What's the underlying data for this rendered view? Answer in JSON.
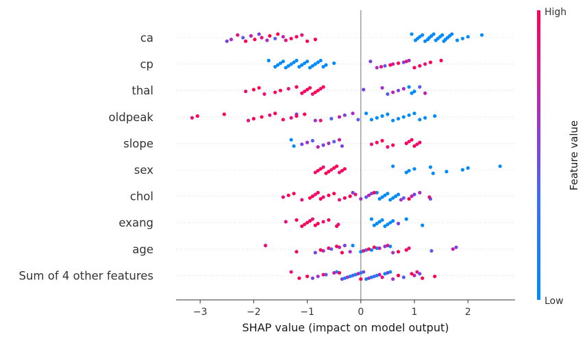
{
  "chart_data": {
    "type": "scatter",
    "title": "",
    "xlabel": "SHAP value (impact on model output)",
    "ylabel": "",
    "xlim": [
      -3.45,
      2.88
    ],
    "x_ticks": [
      -3,
      -2,
      -1,
      0,
      1,
      2
    ],
    "x_tick_labels": [
      "−3",
      "−2",
      "−1",
      "0",
      "1",
      "2"
    ],
    "grid": false,
    "reference_line_x": 0,
    "colorbar": {
      "label": "Feature value",
      "high_label": "High",
      "low_label": "Low",
      "low_color": "#008bfb",
      "high_color": "#ff0052"
    },
    "features": [
      {
        "name": "ca",
        "low_points": [
          0.95,
          1.02,
          1.06,
          1.1,
          1.15,
          1.2,
          1.25,
          1.28,
          1.32,
          1.36,
          1.4,
          1.44,
          1.48,
          1.52,
          1.55,
          1.58,
          1.62,
          1.66,
          1.7,
          1.8,
          1.9,
          2.0,
          2.26
        ],
        "mid_points": [
          -2.5,
          -2.42,
          -2.2,
          -2.05,
          -1.9,
          -1.75,
          -1.6,
          -1.45
        ],
        "high_points": [
          -2.3,
          -2.15,
          -1.98,
          -1.85,
          -1.7,
          -1.55,
          -1.4,
          -1.3,
          -1.2,
          -1.1,
          -1.0,
          -0.85
        ]
      },
      {
        "name": "cp",
        "low_points": [
          -1.72,
          -1.6,
          -1.55,
          -1.5,
          -1.45,
          -1.4,
          -1.35,
          -1.3,
          -1.25,
          -1.2,
          -1.15,
          -1.1,
          -1.05,
          -1.0,
          -0.95,
          -0.9,
          -0.85,
          -0.8,
          -0.75,
          -0.7,
          -0.65,
          -0.5
        ],
        "mid_points": [
          0.18,
          0.3,
          0.45,
          0.6,
          0.8,
          0.9
        ],
        "high_points": [
          0.38,
          0.55,
          0.7,
          0.85,
          1.0,
          1.1,
          1.2,
          1.3,
          1.5
        ]
      },
      {
        "name": "thal",
        "low_points": [
          0.9,
          0.95,
          1.0
        ],
        "mid_points": [
          0.05,
          0.4,
          0.5,
          0.6,
          0.7,
          0.8,
          1.1,
          1.2
        ],
        "high_points": [
          -2.15,
          -2.0,
          -1.9,
          -1.8,
          -1.6,
          -1.5,
          -1.35,
          -1.2,
          -1.1,
          -1.05,
          -1.0,
          -0.95,
          -0.9,
          -0.85,
          -0.8,
          -0.75,
          -0.7
        ]
      },
      {
        "name": "oldpeak",
        "low_points": [
          0.1,
          0.2,
          0.3,
          0.4,
          0.5,
          0.6,
          0.7,
          0.8,
          0.9,
          1.0,
          1.1,
          1.2,
          1.38
        ],
        "mid_points": [
          -1.2,
          -0.85,
          -0.55,
          -0.4,
          -0.3,
          -0.15,
          -0.05
        ],
        "high_points": [
          -3.15,
          -3.05,
          -2.55,
          -2.1,
          -2.0,
          -1.85,
          -1.7,
          -1.6,
          -1.45,
          -1.3,
          -1.2,
          -1.05,
          -0.75
        ]
      },
      {
        "name": "slope",
        "low_points": [
          -1.3,
          -1.25
        ],
        "mid_points": [
          -1.1,
          -1.0,
          -0.9,
          -0.8,
          -0.7,
          -0.6,
          -0.5,
          -0.4,
          -0.35
        ],
        "high_points": [
          0.2,
          0.3,
          0.4,
          0.5,
          0.6,
          0.85,
          0.9,
          0.95,
          1.0,
          1.05,
          1.1
        ]
      },
      {
        "name": "sex",
        "low_points": [
          0.6,
          0.85,
          0.9,
          1.0,
          1.3,
          1.35,
          1.6,
          1.9,
          2.0,
          2.6
        ],
        "mid_points": [],
        "high_points": [
          -0.85,
          -0.8,
          -0.75,
          -0.7,
          -0.65,
          -0.6,
          -0.55,
          -0.5,
          -0.45,
          -0.4,
          -0.35,
          -0.3
        ]
      },
      {
        "name": "chol",
        "low_points": [
          0.3,
          0.35,
          0.4,
          0.45,
          0.5,
          0.55,
          0.6,
          0.65,
          0.7
        ],
        "mid_points": [
          -0.15,
          0.0,
          0.1,
          0.15,
          0.2,
          0.75,
          0.8,
          0.95,
          1.0,
          1.1,
          1.3
        ],
        "high_points": [
          -1.45,
          -1.35,
          -1.25,
          -1.1,
          -0.95,
          -0.9,
          -0.85,
          -0.8,
          -0.75,
          -0.7,
          -0.6,
          -0.5,
          -0.4,
          -0.3,
          -0.2,
          -0.1,
          0.25,
          0.9,
          1.28
        ]
      },
      {
        "name": "exang",
        "low_points": [
          0.2,
          0.25,
          0.3,
          0.35,
          0.4,
          0.45,
          0.5,
          0.55,
          0.6,
          0.85,
          1.15
        ],
        "mid_points": [
          0.7
        ],
        "high_points": [
          -1.4,
          -1.2,
          -1.1,
          -1.05,
          -1.0,
          -0.95,
          -0.9,
          -0.85,
          -0.8,
          -0.7,
          -0.6,
          -0.45,
          -0.42
        ]
      },
      {
        "name": "age",
        "low_points": [
          -0.15,
          0.0,
          0.2,
          0.3,
          0.55
        ],
        "mid_points": [
          -0.85,
          -0.7,
          -0.55,
          -0.4,
          -0.3,
          -0.2,
          0.1,
          0.35,
          0.45,
          0.6,
          1.32,
          1.72,
          1.78
        ],
        "high_points": [
          -1.78,
          -1.2,
          -0.75,
          -0.6,
          -0.45,
          -0.35,
          0.05,
          0.15,
          0.25,
          0.5,
          0.7,
          0.85,
          0.9
        ]
      },
      {
        "name": "Sum of 4 other features",
        "low_points": [
          -0.45,
          -0.3,
          -0.2,
          -0.1,
          0.0,
          0.1,
          0.2,
          0.3,
          0.45,
          0.55
        ],
        "mid_points": [
          -0.9,
          -0.8,
          -0.65,
          -0.5,
          -0.35,
          -0.25,
          -0.15,
          -0.05,
          0.05,
          0.15,
          0.25,
          0.35,
          0.5,
          0.6,
          0.8,
          1.0,
          1.1
        ],
        "high_points": [
          -1.3,
          -1.15,
          -1.0,
          -0.7,
          -0.4,
          0.0,
          0.4,
          0.7,
          0.95,
          1.05,
          1.15,
          1.38
        ]
      }
    ]
  }
}
